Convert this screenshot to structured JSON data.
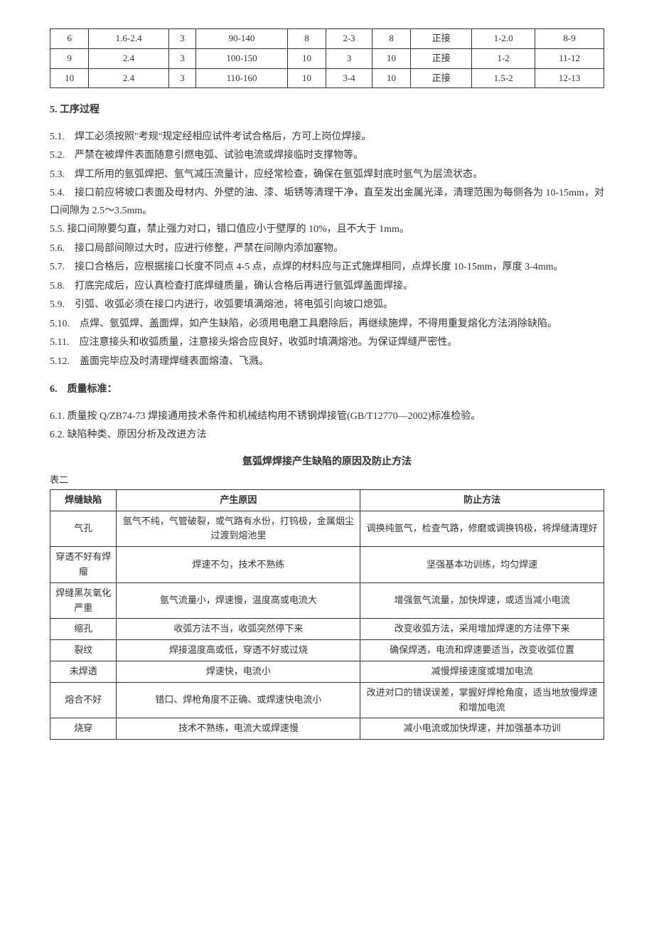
{
  "table1": {
    "rows": [
      [
        "6",
        "1.6-2.4",
        "3",
        "90-140",
        "8",
        "2-3",
        "8",
        "正接",
        "1-2.0",
        "8-9"
      ],
      [
        "9",
        "2.4",
        "3",
        "100-150",
        "10",
        "3",
        "10",
        "正接",
        "1-2",
        "11-12"
      ],
      [
        "10",
        "2.4",
        "3",
        "110-160",
        "10",
        "3-4",
        "10",
        "正接",
        "1.5-2",
        "12-13"
      ]
    ]
  },
  "section5": {
    "title": "5. 工序过程",
    "items": [
      "5.1.　焊工必须按照\"考规\"规定经相应试件考试合格后，方可上岗位焊接。",
      "5.2.　严禁在被焊件表面随意引燃电弧、试验电流或焊接临时支撑物等。",
      "5.3.　焊工所用的氩弧焊把、氩气减压流量计，应经常检查，确保在氩弧焊封底时氩气为层流状态。",
      "5.4.　接口前应将坡口表面及母材内、外壁的油、漆、垢锈等清理干净，直至发出金属光泽，清理范围为每侧各为 10-15mm，对口间隙为 2.5～3.5mm。",
      "5.5. 接口间隙要匀直，禁止强力对口，错口值应小于壁厚的 10%，且不大于 1mm。",
      "5.6.　接口局部间隙过大时，应进行修整，严禁在间隙内添加塞物。",
      "5.7.　接口合格后，应根据接口长度不同点 4-5 点，点焊的材料应与正式施焊相同，点焊长度 10-15mm，厚度 3-4mm。",
      "5.8.　打底完成后，应认真检查打底焊缝质量，确认合格后再进行氩弧焊盖面焊接。",
      "5.9.　引弧、收弧必须在接口内进行，收弧要填满熔池，将电弧引向坡口熄弧。",
      "5.10.　点焊、氩弧焊、盖面焊，如产生缺陷，必须用电磨工具磨除后，再继续施焊，不得用重复熔化方法消除缺陷。",
      "5.11.　应注意接头和收弧质量，注意接头熔合应良好，收弧时填满熔池。为保证焊缝严密性。",
      "5.12.　盖面完毕应及时清理焊缝表面熔渣、飞溅。"
    ]
  },
  "section6": {
    "title": "6.　质量标准：",
    "items": [
      "6.1.  质量按 Q/ZB74-73 焊接通用技术条件和机械结构用不锈钢焊接管(GB/T12770—2002)标准检验。",
      "6.2.  缺陷种类、原因分析及改进方法"
    ]
  },
  "table2": {
    "title": "氩弧焊焊接产生缺陷的原因及防止方法",
    "label": "表二",
    "headers": [
      "焊缝缺陷",
      "产生原因",
      "防止方法"
    ],
    "rows": [
      [
        "气孔",
        "氩气不纯，气管破裂，或气路有水份，打钨极，金属烟尘过渡到熔池里",
        "调换纯氩气，检查气路，修磨或调换钨极，将焊缝清理好"
      ],
      [
        "穿透不好有焊瘤",
        "焊速不匀，技术不熟练",
        "坚强基本功训练，均匀焊速"
      ],
      [
        "焊缝黑灰氧化严重",
        "氩气流量小，焊速慢，温度高或电流大",
        "增强氩气流量，加快焊速，或适当减小电流"
      ],
      [
        "缩孔",
        "收弧方法不当，收弧突然停下来",
        "改变收弧方法，采用增加焊速的方法停下来"
      ],
      [
        "裂纹",
        "焊接温度高或低，穿透不好或过烧",
        "确保焊透，电流和焊速要适当，改变收弧位置"
      ],
      [
        "未焊透",
        "焊速快，电流小",
        "减慢焊接速度或增加电流"
      ],
      [
        "熔合不好",
        "错口、焊枪角度不正确、或焊速快电流小",
        "改进对口的错误误差，掌握好焊枪角度，适当地放慢焊速和增加电流"
      ],
      [
        "烧穿",
        "技术不熟练，电流大或焊速慢",
        "减小电流或加快焊速，并加强基本功训"
      ]
    ]
  }
}
